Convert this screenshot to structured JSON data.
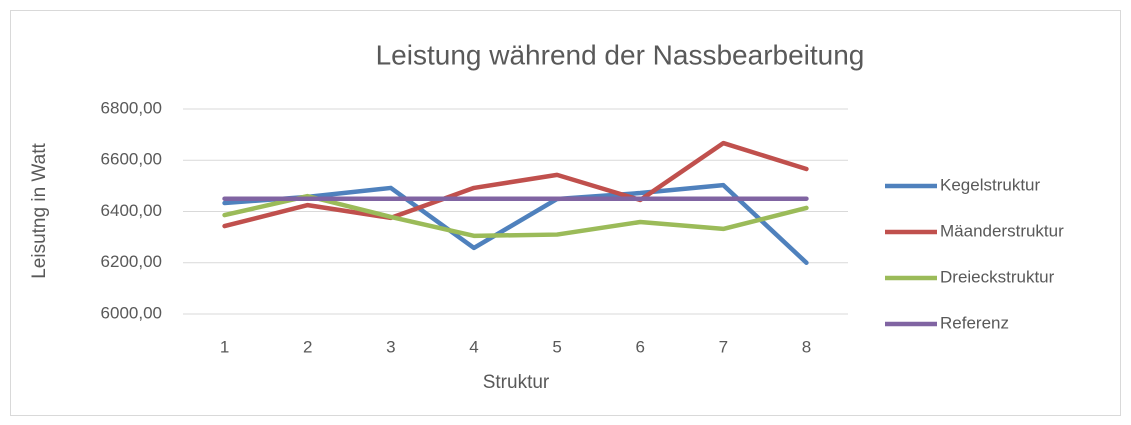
{
  "chart_data": {
    "type": "line",
    "title": "Leistung während der Nassbearbeitung",
    "x_label": "Struktur",
    "y_label": "Leisutng in Watt",
    "categories": [
      "1",
      "2",
      "3",
      "4",
      "5",
      "6",
      "7",
      "8"
    ],
    "series": [
      {
        "name": "Kegelstruktur",
        "color": "#4f81bd",
        "values": [
          6433,
          6457,
          6492,
          6258,
          6449,
          6472,
          6503,
          6200
        ]
      },
      {
        "name": "Mäanderstruktur",
        "color": "#c0504d",
        "values": [
          6343,
          6425,
          6375,
          6492,
          6543,
          6445,
          6667,
          6566
        ]
      },
      {
        "name": "Dreieckstruktur",
        "color": "#9bbb59",
        "values": [
          6386,
          6460,
          6379,
          6305,
          6310,
          6359,
          6332,
          6414
        ]
      },
      {
        "name": "Referenz",
        "color": "#8064a2",
        "values": [
          6450,
          6450,
          6450,
          6450,
          6450,
          6450,
          6450,
          6450
        ]
      }
    ],
    "ylim": [
      6000,
      6800
    ],
    "yticks": [
      {
        "value": 6000,
        "label": "6000,00"
      },
      {
        "value": 6200,
        "label": "6200,00"
      },
      {
        "value": 6400,
        "label": "6400,00"
      },
      {
        "value": 6600,
        "label": "6600,00"
      },
      {
        "value": 6800,
        "label": "6800,00"
      }
    ],
    "grid": true,
    "legend": "right"
  }
}
